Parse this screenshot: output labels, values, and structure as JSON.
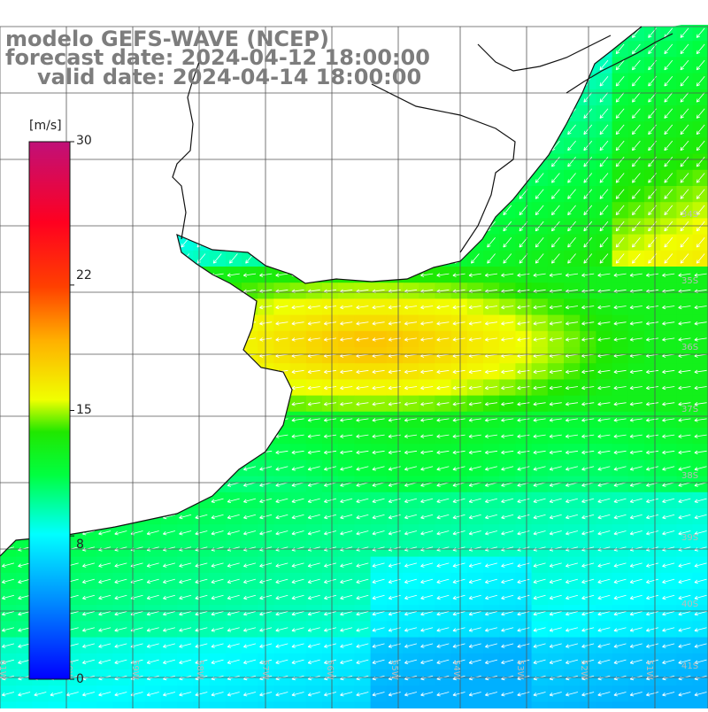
{
  "header": {
    "model": "modelo GEFS-WAVE (NCEP)",
    "forecast_date": "forecast date: 2024-04-12 18:00:00",
    "valid_date": "valid date: 2024-04-14 18:00:00"
  },
  "colorbar": {
    "unit": "[m/s]",
    "ticks": [
      "30",
      "22",
      "15",
      "8",
      "0"
    ],
    "tick_values": [
      30,
      22,
      15,
      8,
      0
    ],
    "range": [
      0,
      30
    ],
    "colors": [
      "#0000ff",
      "#00a0ff",
      "#00ffff",
      "#00ff30",
      "#2ee800",
      "#ffff00",
      "#ffa000",
      "#ff2000",
      "#c01070"
    ]
  },
  "map": {
    "lat_labels": [
      "34S",
      "35S",
      "36S",
      "37S",
      "38S",
      "39S",
      "40S",
      "41S"
    ],
    "lon_labels": [
      "61W",
      "60W",
      "59W",
      "58W",
      "57W",
      "56W",
      "55W",
      "54W",
      "53W",
      "52W",
      "51W"
    ],
    "wind_direction": "from east / north-east",
    "palette": {
      "land": "#ffffff",
      "grid": "#555555",
      "coast": "#111111",
      "arrows": "#ffffff"
    }
  }
}
